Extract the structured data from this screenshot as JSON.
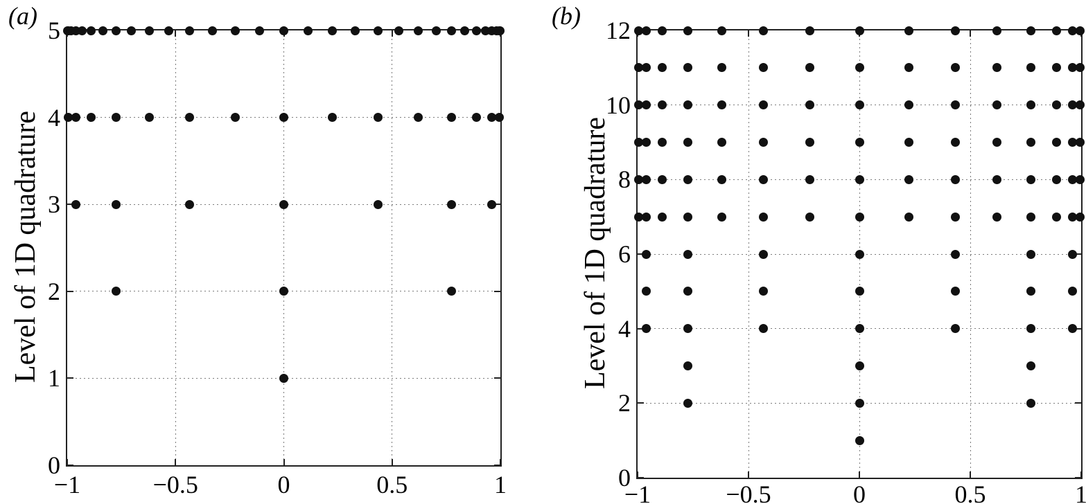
{
  "figure": {
    "background": "#ffffff",
    "dot_color": "#111111",
    "axis_color": "#222222",
    "grid_color": "#7a7a7a",
    "text_color": "#000000"
  },
  "chart_data": [
    {
      "type": "scatter",
      "tag": "(a)",
      "title": "",
      "xlabel": "",
      "ylabel": "Level of 1D quadrature",
      "xlim": [
        -1,
        1
      ],
      "ylim": [
        0,
        5
      ],
      "grid": true,
      "xticks": [
        -1,
        -0.5,
        0,
        0.5,
        1
      ],
      "xtick_labels": [
        "−1",
        "−0.5",
        "0",
        "0.5",
        "1"
      ],
      "yticks": [
        0,
        1,
        2,
        3,
        4,
        5
      ],
      "ytick_labels": [
        "0",
        "1",
        "2",
        "3",
        "4",
        "5"
      ],
      "levels": [
        {
          "level": 1,
          "nodes_ref": "gp1"
        },
        {
          "level": 2,
          "nodes_ref": "gp3"
        },
        {
          "level": 3,
          "nodes_ref": "gp7"
        },
        {
          "level": 4,
          "nodes_ref": "gp15"
        },
        {
          "level": 5,
          "nodes_ref": "gp31"
        }
      ]
    },
    {
      "type": "scatter",
      "tag": "(b)",
      "title": "",
      "xlabel": "",
      "ylabel": "Level of 1D quadrature",
      "xlim": [
        -1,
        1
      ],
      "ylim": [
        0,
        12
      ],
      "grid": true,
      "xticks": [
        -1,
        -0.5,
        0,
        0.5,
        1
      ],
      "xtick_labels": [
        "−1",
        "−0.5",
        "0",
        "0.5",
        "1"
      ],
      "yticks": [
        0,
        2,
        4,
        6,
        8,
        10,
        12
      ],
      "ytick_labels": [
        "0",
        "2",
        "4",
        "6",
        "8",
        "10",
        "12"
      ],
      "levels": [
        {
          "level": 1,
          "nodes_ref": "gp1"
        },
        {
          "level": 2,
          "nodes_ref": "gp3"
        },
        {
          "level": 3,
          "nodes_ref": "gp3"
        },
        {
          "level": 4,
          "nodes_ref": "gp7"
        },
        {
          "level": 5,
          "nodes_ref": "gp7"
        },
        {
          "level": 6,
          "nodes_ref": "gp7"
        },
        {
          "level": 7,
          "nodes_ref": "gp15"
        },
        {
          "level": 8,
          "nodes_ref": "gp15"
        },
        {
          "level": 9,
          "nodes_ref": "gp15"
        },
        {
          "level": 10,
          "nodes_ref": "gp15"
        },
        {
          "level": 11,
          "nodes_ref": "gp15"
        },
        {
          "level": 12,
          "nodes_ref": "gp15"
        }
      ]
    }
  ],
  "node_sets": {
    "gp1": [
      0
    ],
    "gp3": [
      -0.774597,
      0,
      0.774597
    ],
    "gp7": [
      -0.960491,
      -0.774597,
      -0.434244,
      0,
      0.434244,
      0.774597,
      0.960491
    ],
    "gp15": [
      -0.993832,
      -0.960491,
      -0.888459,
      -0.774597,
      -0.621103,
      -0.434244,
      -0.223387,
      0,
      0.223387,
      0.434244,
      0.621103,
      0.774597,
      0.888459,
      0.960491,
      0.993832
    ],
    "gp31": [
      -0.999098,
      -0.993832,
      -0.981531,
      -0.960491,
      -0.929655,
      -0.888459,
      -0.836726,
      -0.774597,
      -0.702496,
      -0.621103,
      -0.53132,
      -0.434244,
      -0.331135,
      -0.223387,
      -0.112489,
      0,
      0.112489,
      0.223387,
      0.331135,
      0.434244,
      0.53132,
      0.621103,
      0.702496,
      0.774597,
      0.836726,
      0.888459,
      0.929655,
      0.960491,
      0.981531,
      0.993832,
      0.999098
    ]
  }
}
